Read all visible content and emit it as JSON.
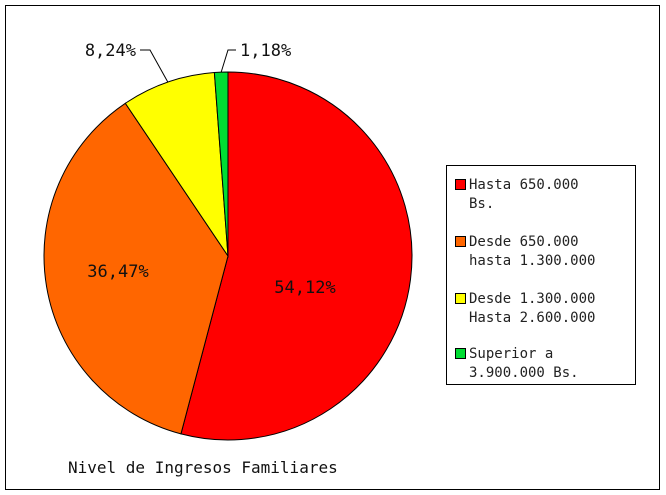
{
  "chart_data": {
    "type": "pie",
    "title": "Nivel de Ingresos Familiares",
    "legend_position": "right",
    "slices": [
      {
        "label": "Hasta 650.000\nBs.",
        "value": 54.12,
        "display": "54,12%",
        "color": "#ff0000"
      },
      {
        "label": "Desde 650.000\nhasta 1.300.000",
        "value": 36.47,
        "display": "36,47%",
        "color": "#ff6600"
      },
      {
        "label": "Desde 1.300.000\nHasta 2.600.000",
        "value": 8.24,
        "display": "8,24%",
        "color": "#ffff00"
      },
      {
        "label": "Superior a\n3.900.000 Bs.",
        "value": 1.18,
        "display": "1,18%",
        "color": "#00dd33"
      }
    ]
  }
}
